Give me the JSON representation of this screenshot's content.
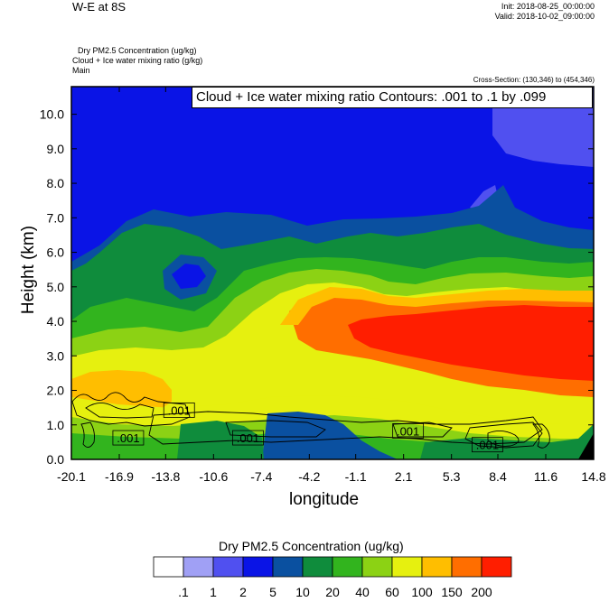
{
  "header": {
    "title": "W-E at 8S",
    "init": "Init: 2018-08-25_00:00:00",
    "valid": "Valid: 2018-10-02_09:00:00",
    "var_line_1": "Dry PM2.5 Concentration   (ug/kg)",
    "var_line_2": "Cloud + Ice water mixing ratio   (g/kg)",
    "var_line_3": "Main",
    "cross_section": "Cross-Section: (130,346) to (454,346)"
  },
  "contour_box": "Cloud + Ice water mixing ratio Contours: .001 to .1 by .099",
  "chart_data": {
    "type": "heatmap",
    "xlabel": "longitude",
    "ylabel": "Height (km)",
    "x_ticks": [
      "-20.1",
      "-16.9",
      "-13.8",
      "-10.6",
      "-7.4",
      "-4.2",
      "-1.1",
      "2.1",
      "5.3",
      "8.4",
      "11.6",
      "14.8"
    ],
    "y_ticks": [
      "0.0",
      "1.0",
      "2.0",
      "3.0",
      "4.0",
      "5.0",
      "6.0",
      "7.0",
      "8.0",
      "9.0",
      "10.0"
    ],
    "xlim": [
      -20.1,
      14.8
    ],
    "ylim": [
      0.0,
      10.8
    ],
    "contour_labels": [
      {
        "text": ".001",
        "x": -12.9,
        "y": 1.4
      },
      {
        "text": ".001",
        "x": -16.3,
        "y": 0.6
      },
      {
        "text": ".001",
        "x": -8.3,
        "y": 0.6
      },
      {
        "text": ".001",
        "x": 2.4,
        "y": 0.8
      },
      {
        "text": ".001",
        "x": 7.7,
        "y": 0.4
      }
    ],
    "colorbar": {
      "title": "Dry PM2.5 Concentration  (ug/kg)",
      "labels": [
        ".1",
        "1",
        "2",
        "5",
        "10",
        "20",
        "40",
        "60",
        "100",
        "150",
        "200"
      ],
      "colors": [
        "#ffffff",
        "#a0a0f5",
        "#5050f0",
        "#0a14e6",
        "#0a50a0",
        "#0f8c3c",
        "#32b41e",
        "#8cd214",
        "#e6f00f",
        "#ffbe00",
        "#ff6e00",
        "#ff1e00"
      ]
    }
  }
}
